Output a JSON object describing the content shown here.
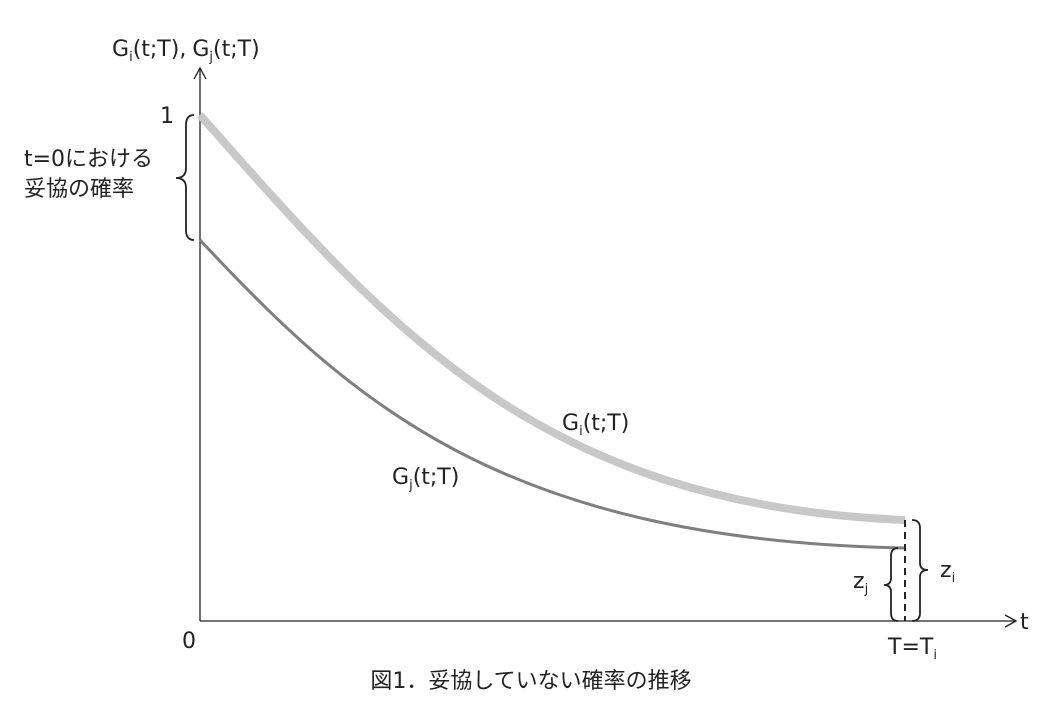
{
  "y_axis_label": {
    "g_i": {
      "base": "G",
      "sub": "i",
      "rest": "(t;T),"
    },
    "g_j": {
      "base": "G",
      "sub": "j",
      "rest": "(t;T)"
    }
  },
  "y_tick_top": "1",
  "origin_label": "0",
  "x_axis_label": "t",
  "brace_label": [
    "t=0における",
    "妥協の確率"
  ],
  "curve_i_label": {
    "base": "G",
    "sub": "i",
    "rest": "(t;T)"
  },
  "curve_j_label": {
    "base": "G",
    "sub": "j",
    "rest": "(t;T)"
  },
  "z_j_label": {
    "base": "z",
    "sub": "j"
  },
  "z_i_label": {
    "base": "z",
    "sub": "i"
  },
  "t_end_label": {
    "base": "T=T",
    "sub": "i"
  },
  "caption": "図1．妥協していない確率の推移"
}
